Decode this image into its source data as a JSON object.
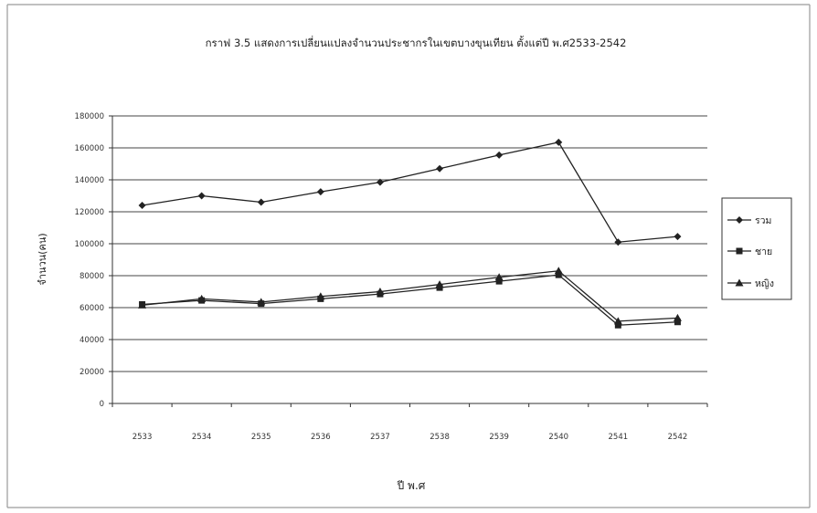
{
  "chart_data": {
    "type": "line",
    "title": "กราฟ 3.5 แสดงการเปลี่ยนแปลงจำนวนประชากรในเขตบางขุนเทียน ตั้งแต่ปี พ.ศ2533-2542",
    "xlabel": "ปี พ.ศ",
    "ylabel": "จำนวน(คน)",
    "categories": [
      "2533",
      "2534",
      "2535",
      "2536",
      "2537",
      "2538",
      "2539",
      "2540",
      "2541",
      "2542"
    ],
    "ylim": [
      0,
      180000
    ],
    "yticks": [
      "0",
      "20000",
      "40000",
      "60000",
      "80000",
      "100000",
      "120000",
      "140000",
      "160000",
      "180000"
    ],
    "grid": true,
    "legend_position": "right",
    "series": [
      {
        "name": "รวม",
        "marker": "diamond",
        "values": [
          124000,
          130000,
          126000,
          132500,
          138500,
          147000,
          155500,
          163500,
          101000,
          104500
        ]
      },
      {
        "name": "ชาย",
        "marker": "square",
        "values": [
          62000,
          64500,
          62500,
          65500,
          68500,
          72500,
          76500,
          80500,
          49000,
          51000
        ]
      },
      {
        "name": "หญิง",
        "marker": "triangle",
        "values": [
          61500,
          65500,
          63500,
          67000,
          70000,
          74500,
          79000,
          83000,
          51500,
          53500
        ]
      }
    ]
  }
}
